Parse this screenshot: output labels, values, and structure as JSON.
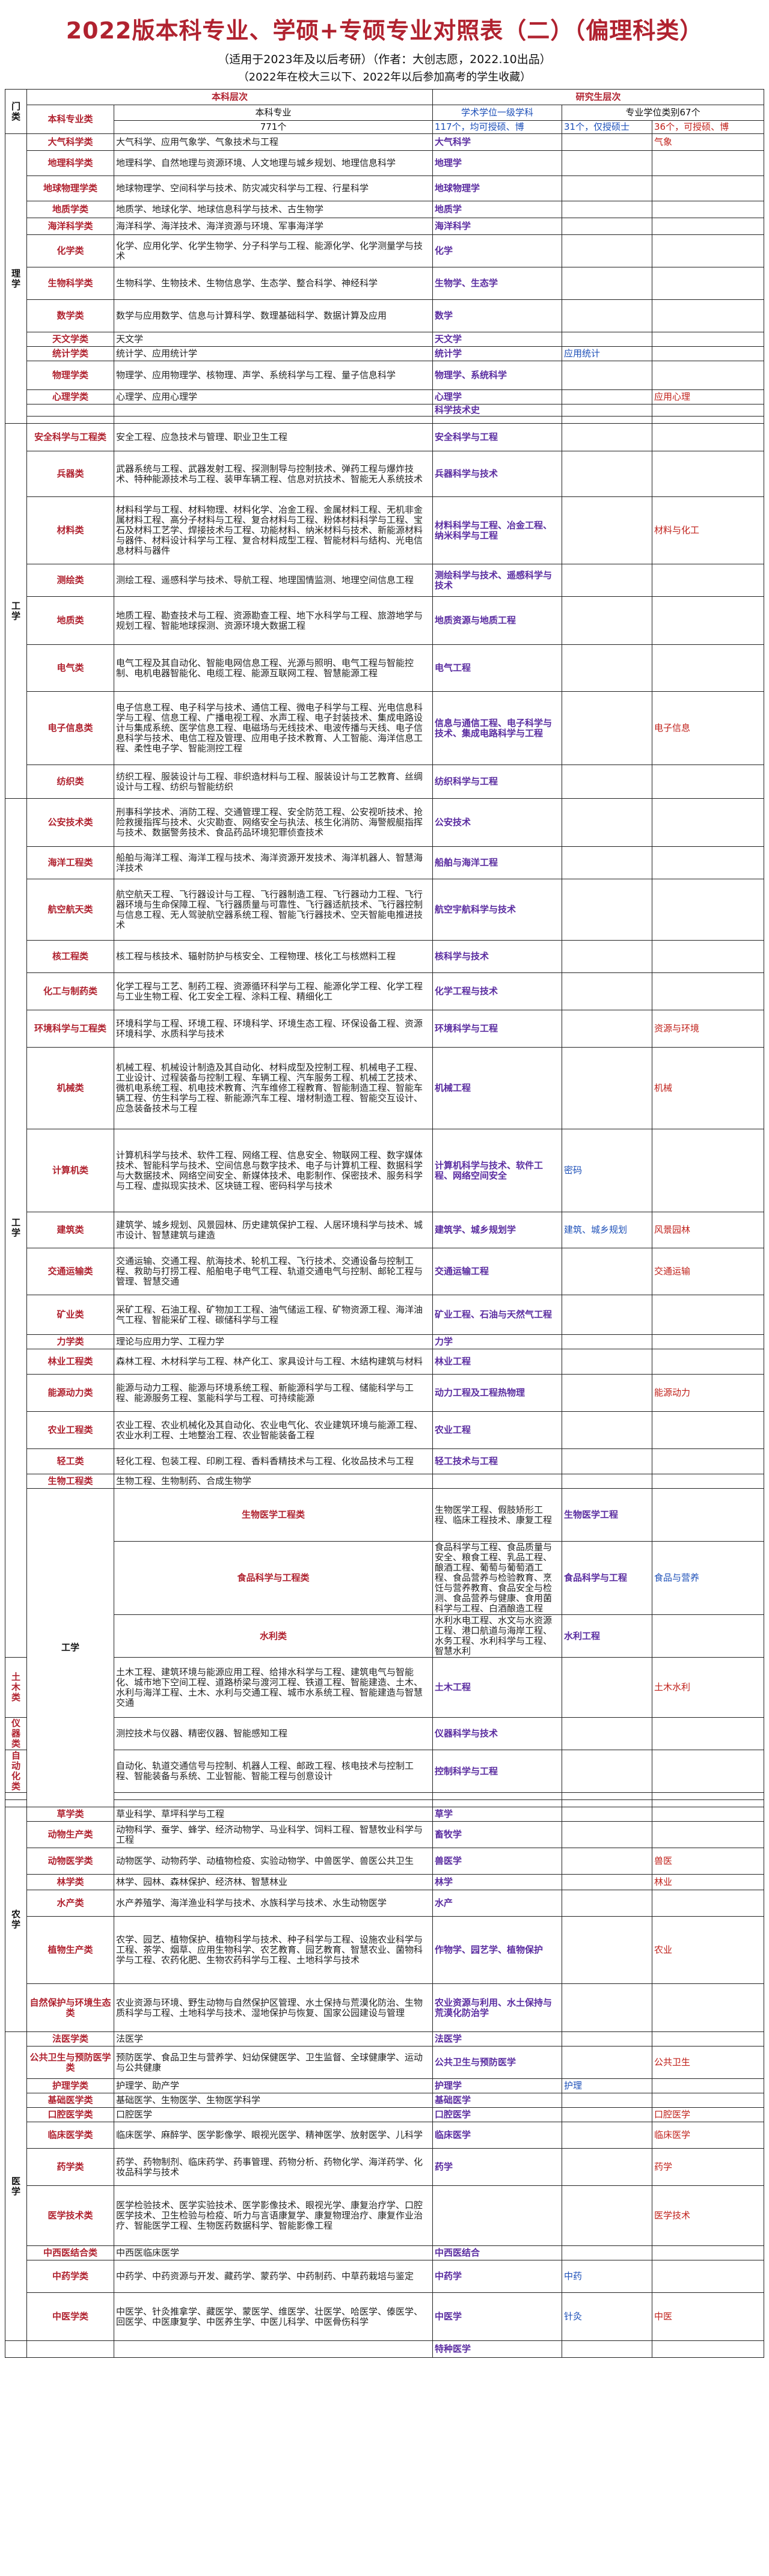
{
  "title": "2022版本科专业、学硕+专硕专业对照表（二）（偏理科类）",
  "subtitle": "（适用于2023年及以后考研）（作者：大创志愿，2022.10出品）",
  "note": "（2022年在校大三以下、2022年以后参加高考的学生收藏）",
  "header": {
    "menlei": "门类",
    "undergrad_level": "本科层次",
    "grad_level": "研究生层次",
    "category": "本科专业类",
    "major": "本科专业",
    "major_count": "771个",
    "academic": "学术学位一级学科",
    "academic_count": "117个，均可授硕、博",
    "professional": "专业学位类别67个",
    "master_count": "31个，仅授硕士",
    "doctor_count": "36个，可授硕、博"
  },
  "rows": [
    {
      "men": "理学",
      "span": 14,
      "cat": "大气科学类",
      "major": "大气科学、应用气象学、气象技术与工程",
      "acad": "大气科学",
      "mas": "",
      "prof": "气象",
      "h": 28
    },
    {
      "cat": "地理科学类",
      "major": "地理科学、自然地理与资源环境、人文地理与城乡规划、地理信息科学",
      "acad": "地理学",
      "mas": "",
      "prof": "",
      "h": 42
    },
    {
      "cat": "地球物理学类",
      "major": "地球物理学、空间科学与技术、防灾减灾科学与工程、行星科学",
      "acad": "地球物理学",
      "mas": "",
      "prof": "",
      "h": 42
    },
    {
      "cat": "地质学类",
      "major": "地质学、地球化学、地球信息科学与技术、古生物学",
      "acad": "地质学",
      "mas": "",
      "prof": "",
      "h": 28
    },
    {
      "cat": "海洋科学类",
      "major": "海洋科学、海洋技术、海洋资源与环境、军事海洋学",
      "acad": "海洋科学",
      "mas": "",
      "prof": "",
      "h": 28
    },
    {
      "cat": "化学类",
      "major": "化学、应用化学、化学生物学、分子科学与工程、能源化学、化学测量学与技术",
      "acad": "化学",
      "mas": "",
      "prof": "",
      "h": 54
    },
    {
      "cat": "生物科学类",
      "major": "生物科学、生物技术、生物信息学、生态学、整合科学、神经科学",
      "acad": "生物学、生态学",
      "mas": "",
      "prof": "",
      "h": 54
    },
    {
      "cat": "数学类",
      "major": "数学与应用数学、信息与计算科学、数理基础科学、数据计算及应用",
      "acad": "数学",
      "mas": "",
      "prof": "",
      "h": 54
    },
    {
      "cat": "天文学类",
      "major": "天文学",
      "acad": "天文学",
      "mas": "",
      "prof": "",
      "h": 24
    },
    {
      "cat": "统计学类",
      "major": "统计学、应用统计学",
      "acad": "统计学",
      "mas": "应用统计",
      "prof": "",
      "h": 24
    },
    {
      "cat": "物理学类",
      "major": "物理学、应用物理学、核物理、声学、系统科学与工程、量子信息科学",
      "acad": "物理学、系统科学",
      "mas": "",
      "prof": "",
      "h": 48
    },
    {
      "cat": "心理学类",
      "major": "心理学、应用心理学",
      "acad": "心理学",
      "mas": "",
      "prof": "应用心理",
      "h": 24
    },
    {
      "cat": "",
      "major": "",
      "acad": "科学技术史",
      "mas": "",
      "prof": "",
      "h": 20
    },
    {
      "cat": "",
      "major": "",
      "acad": "",
      "mas": "",
      "prof": "",
      "h": 12
    },
    {
      "men": "工学",
      "span": 8,
      "cat": "安全科学与工程类",
      "major": "安全工程、应急技术与管理、职业卫生工程",
      "acad": "安全科学与工程",
      "mas": "",
      "prof": "",
      "h": 46
    },
    {
      "cat": "兵器类",
      "major": "武器系统与工程、武器发射工程、探测制导与控制技术、弹药工程与爆炸技术、特种能源技术与工程、装甲车辆工程、信息对抗技术、智能无人系统技术",
      "acad": "兵器科学与技术",
      "mas": "",
      "prof": "",
      "h": 76
    },
    {
      "cat": "材料类",
      "major": "材料科学与工程、材料物理、材料化学、冶金工程、金属材料工程、无机非金属材料工程、高分子材料与工程、复合材料与工程、粉体材料科学与工程、宝石及材料工艺学、焊接技术与工程、功能材料、纳米材料与技术、新能源材料与器件、材料设计科学与工程、复合材料成型工程、智能材料与结构、光电信息材料与器件",
      "acad": "材料科学与工程、冶金工程、纳米科学与工程",
      "mas": "",
      "prof": "材料与化工",
      "h": 112
    },
    {
      "cat": "测绘类",
      "major": "测绘工程、遥感科学与技术、导航工程、地理国情监测、地理空间信息工程",
      "acad": "测绘科学与技术、遥感科学与技术",
      "mas": "",
      "prof": "",
      "h": 54
    },
    {
      "cat": "地质类",
      "major": "地质工程、勘查技术与工程、资源勘查工程、地下水科学与工程、旅游地学与规划工程、智能地球探测、资源环境大数据工程",
      "acad": "地质资源与地质工程",
      "mas": "",
      "prof": "",
      "h": 80
    },
    {
      "cat": "电气类",
      "major": "电气工程及其自动化、智能电网信息工程、光源与照明、电气工程与智能控制、电机电器智能化、电缆工程、能源互联网工程、智慧能源工程",
      "acad": "电气工程",
      "mas": "",
      "prof": "",
      "h": 78
    },
    {
      "cat": "电子信息类",
      "major": "电子信息工程、电子科学与技术、通信工程、微电子科学与工程、光电信息科学与工程、信息工程、广播电视工程、水声工程、电子封装技术、集成电路设计与集成系统、医学信息工程、电磁场与无线技术、电波传播与天线、电子信息科学与技术、电信工程及管理、应用电子技术教育、人工智能、海洋信息工程、柔性电子学、智能测控工程",
      "acad": "信息与通信工程、电子科学与技术、集成电路科学与工程",
      "mas": "",
      "prof": "电子信息",
      "h": 122
    },
    {
      "cat": "纺织类",
      "major": "纺织工程、服装设计与工程、非织造材料与工程、服装设计与工艺教育、丝绸设计与工程、纺织与智能纺织",
      "acad": "纺织科学与工程",
      "mas": "",
      "prof": "",
      "h": 56
    },
    {
      "men": "工学",
      "span": 20,
      "cat": "公安技术类",
      "major": "刑事科学技术、消防工程、交通管理工程、安全防范工程、公安视听技术、抢险救援指挥与技术、火灾勘查、网络安全与执法、核生化消防、海警舰艇指挥与技术、数据警务技术、食品药品环境犯罪侦查技术",
      "acad": "公安技术",
      "mas": "",
      "prof": "",
      "h": 80
    },
    {
      "cat": "海洋工程类",
      "major": "船舶与海洋工程、海洋工程与技术、海洋资源开发技术、海洋机器人、智慧海洋技术",
      "acad": "船舶与海洋工程",
      "mas": "",
      "prof": "",
      "h": 54
    },
    {
      "cat": "航空航天类",
      "major": "航空航天工程、飞行器设计与工程、飞行器制造工程、飞行器动力工程、飞行器环境与生命保障工程、飞行器质量与可靠性、飞行器适航技术、飞行器控制与信息工程、无人驾驶航空器系统工程、智能飞行器技术、空天智能电推进技术",
      "acad": "航空宇航科学与技术",
      "mas": "",
      "prof": "",
      "h": 102
    },
    {
      "cat": "核工程类",
      "major": "核工程与核技术、辐射防护与核安全、工程物理、核化工与核燃料工程",
      "acad": "核科学与技术",
      "mas": "",
      "prof": "",
      "h": 54
    },
    {
      "cat": "化工与制药类",
      "major": "化学工程与工艺、制药工程、资源循环科学与工程、能源化学工程、化学工程与工业生物工程、化工安全工程、涂料工程、精细化工",
      "acad": "化学工程与技术",
      "mas": "",
      "prof": "",
      "h": 62
    },
    {
      "cat": "环境科学与工程类",
      "major": "环境科学与工程、环境工程、环境科学、环境生态工程、环保设备工程、资源环境科学、水质科学与技术",
      "acad": "环境科学与工程",
      "mas": "",
      "prof": "资源与环境",
      "h": 62
    },
    {
      "cat": "机械类",
      "major": "机械工程、机械设计制造及其自动化、材料成型及控制工程、机械电子工程、工业设计、过程装备与控制工程、车辆工程、汽车服务工程、机械工艺技术、微机电系统工程、机电技术教育、汽车维修工程教育、智能制造工程、智能车辆工程、仿生科学与工程、新能源汽车工程、增材制造工程、智能交互设计、应急装备技术与工程",
      "acad": "机械工程",
      "mas": "",
      "prof": "机械",
      "h": 136
    },
    {
      "cat": "计算机类",
      "major": "计算机科学与技术、软件工程、网络工程、信息安全、物联网工程、数字媒体技术、智能科学与技术、空间信息与数字技术、电子与计算机工程、数据科学与大数据技术、网络空间安全、新媒体技术、电影制作、保密技术、服务科学与工程、虚拟现实技术、区块链工程、密码科学与技术",
      "acad": "计算机科学与技术、软件工程、网络空间安全",
      "mas": "密码",
      "prof": "",
      "h": 138
    },
    {
      "cat": "建筑类",
      "major": "建筑学、城乡规划、风景园林、历史建筑保护工程、人居环境科学与技术、城市设计、智慧建筑与建造",
      "acad": "建筑学、城乡规划学",
      "mas": "建筑、城乡规划",
      "prof": "风景园林",
      "h": 60
    },
    {
      "cat": "交通运输类",
      "major": "交通运输、交通工程、航海技术、轮机工程、飞行技术、交通设备与控制工程、救助与打捞工程、船舶电子电气工程、轨道交通电气与控制、邮轮工程与管理、智慧交通",
      "acad": "交通运输工程",
      "mas": "",
      "prof": "交通运输",
      "h": 78
    },
    {
      "cat": "矿业类",
      "major": "采矿工程、石油工程、矿物加工工程、油气储运工程、矿物资源工程、海洋油气工程、智能采矿工程、碳储科学与工程",
      "acad": "矿业工程、石油与天然气工程",
      "mas": "",
      "prof": "",
      "h": 66
    },
    {
      "cat": "力学类",
      "major": "理论与应用力学、工程力学",
      "acad": "力学",
      "mas": "",
      "prof": "",
      "h": 24
    },
    {
      "cat": "林业工程类",
      "major": "森林工程、木材科学与工程、林产化工、家具设计与工程、木结构建筑与材料",
      "acad": "林业工程",
      "mas": "",
      "prof": "",
      "h": 42
    },
    {
      "cat": "能源动力类",
      "major": "能源与动力工程、能源与环境系统工程、新能源科学与工程、储能科学与工程、能源服务工程、氢能科学与工程、可持续能源",
      "acad": "动力工程及工程热物理",
      "mas": "",
      "prof": "能源动力",
      "h": 62
    },
    {
      "cat": "农业工程类",
      "major": "农业工程、农业机械化及其自动化、农业电气化、农业建筑环境与能源工程、农业水利工程、土地整治工程、农业智能装备工程",
      "acad": "农业工程",
      "mas": "",
      "prof": "",
      "h": 62
    },
    {
      "cat": "轻工类",
      "major": "轻化工程、包装工程、印刷工程、香料香精技术与工程、化妆品技术与工程",
      "acad": "轻工技术与工程",
      "mas": "",
      "prof": "",
      "h": 42
    },
    {
      "cat": "生物工程类",
      "major": "生物工程、生物制药、合成生物学",
      "acad": "",
      "mas": "",
      "prof": "",
      "h": 24
    },
    {
      "men": "工学",
      "span": 8,
      "cat": "生物医学工程类",
      "major": "生物医学工程、假肢矫形工程、临床工程技术、康复工程",
      "acad": "生物医学工程",
      "mas": "",
      "prof": "生物与医药",
      "h": 44
    },
    {
      "cat": "食品科学与工程类",
      "major": "食品科学与工程、食品质量与安全、粮食工程、乳品工程、酿酒工程、葡萄与葡萄酒工程、食品营养与检验教育、烹饪与营养教育、食品安全与检测、食品营养与健康、食用菌科学与工程、白酒酿造工程",
      "acad": "食品科学与工程",
      "mas": "食品与营养",
      "prof": "",
      "h": 86
    },
    {
      "cat": "水利类",
      "major": "水利水电工程、水文与水资源工程、港口航道与海岸工程、水务工程、水利科学与工程、智慧水利",
      "acad": "水利工程",
      "mas": "",
      "prof": "",
      "h": 56
    },
    {
      "cat": "土木类",
      "major": "土木工程、建筑环境与能源应用工程、给排水科学与工程、建筑电气与智能化、城市地下空间工程、道路桥梁与渡河工程、铁道工程、智能建造、土木、水利与海洋工程、土木、水利与交通工程、城市水系统工程、智能建造与智慧交通",
      "acad": "土木工程",
      "mas": "",
      "prof": "土木水利",
      "h": 100
    },
    {
      "cat": "仪器类",
      "major": "测控技术与仪器、精密仪器、智能感知工程",
      "acad": "仪器科学与技术",
      "mas": "",
      "prof": "",
      "h": 24
    },
    {
      "cat": "自动化类",
      "major": "自动化、轨道交通信号与控制、机器人工程、邮政工程、核电技术与控制工程、智能装备与系统、工业智能、智能工程与创意设计",
      "acad": "控制科学与工程",
      "mas": "",
      "prof": "",
      "h": 62
    },
    {
      "cat": "",
      "major": "",
      "acad": "",
      "mas": "",
      "prof": "",
      "h": 12
    },
    {
      "cat": "",
      "major": "",
      "acad": "",
      "mas": "",
      "prof": "",
      "h": 12
    },
    {
      "men": "农学",
      "span": 7,
      "cat": "草学类",
      "major": "草业科学、草坪科学与工程",
      "acad": "草学",
      "mas": "",
      "prof": "",
      "h": 24
    },
    {
      "cat": "动物生产类",
      "major": "动物科学、蚕学、蜂学、经济动物学、马业科学、饲料工程、智慧牧业科学与工程",
      "acad": "畜牧学",
      "mas": "",
      "prof": "",
      "h": 44
    },
    {
      "cat": "动物医学类",
      "major": "动物医学、动物药学、动植物检疫、实验动物学、中兽医学、兽医公共卫生",
      "acad": "兽医学",
      "mas": "",
      "prof": "兽医",
      "h": 44
    },
    {
      "cat": "林学类",
      "major": "林学、园林、森林保护、经济林、智慧林业",
      "acad": "林学",
      "mas": "",
      "prof": "林业",
      "h": 26
    },
    {
      "cat": "水产类",
      "major": "水产养殖学、海洋渔业科学与技术、水族科学与技术、水生动物医学",
      "acad": "水产",
      "mas": "",
      "prof": "",
      "h": 44
    },
    {
      "cat": "植物生产类",
      "major": "农学、园艺、植物保护、植物科学与技术、种子科学与工程、设施农业科学与工程、茶学、烟草、应用生物科学、农艺教育、园艺教育、智慧农业、菌物科学与工程、农药化肥、生物农药科学与工程、土地科学与技术",
      "acad": "作物学、园艺学、植物保护",
      "mas": "",
      "prof": "农业",
      "h": 112
    },
    {
      "cat": "自然保护与环境生态类",
      "major": "农业资源与环境、野生动物与自然保护区管理、水土保持与荒漠化防治、生物质科学与工程、土地科学与技术、湿地保护与恢复、国家公园建设与管理",
      "acad": "农业资源与利用、水土保持与荒漠化防治学",
      "mas": "",
      "prof": "",
      "h": 80
    },
    {
      "men": "医学",
      "span": 11,
      "cat": "法医学类",
      "major": "法医学",
      "acad": "法医学",
      "mas": "",
      "prof": "",
      "h": 24
    },
    {
      "cat": "公共卫生与预防医学类",
      "major": "预防医学、食品卫生与营养学、妇幼保健医学、卫生监督、全球健康学、运动与公共健康",
      "acad": "公共卫生与预防医学",
      "mas": "",
      "prof": "公共卫生",
      "h": 54
    },
    {
      "cat": "护理学类",
      "major": "护理学、助产学",
      "acad": "护理学",
      "mas": "护理",
      "prof": "",
      "h": 24
    },
    {
      "cat": "基础医学类",
      "major": "基础医学、生物医学、生物医学科学",
      "acad": "基础医学",
      "mas": "",
      "prof": "",
      "h": 24
    },
    {
      "cat": "口腔医学类",
      "major": "口腔医学",
      "acad": "口腔医学",
      "mas": "",
      "prof": "口腔医学",
      "h": 24
    },
    {
      "cat": "临床医学类",
      "major": "临床医学、麻醉学、医学影像学、眼视光医学、精神医学、放射医学、儿科学",
      "acad": "临床医学",
      "mas": "",
      "prof": "临床医学",
      "h": 44
    },
    {
      "cat": "药学类",
      "major": "药学、药物制剂、临床药学、药事管理、药物分析、药物化学、海洋药学、化妆品科学与技术",
      "acad": "药学",
      "mas": "",
      "prof": "药学",
      "h": 62
    },
    {
      "cat": "医学技术类",
      "major": "医学检验技术、医学实验技术、医学影像技术、眼视光学、康复治疗学、口腔医学技术、卫生检验与检疫、听力与言语康复学、康复物理治疗、康复作业治疗、智能医学工程、生物医药数据科学、智能影像工程",
      "acad": "",
      "mas": "",
      "prof": "医学技术",
      "h": 100
    },
    {
      "cat": "中西医结合类",
      "major": "中西医临床医学",
      "acad": "中西医结合",
      "mas": "",
      "prof": "",
      "h": 24
    },
    {
      "cat": "中药学类",
      "major": "中药学、中药资源与开发、藏药学、蒙药学、中药制药、中草药栽培与鉴定",
      "acad": "中药学",
      "mas": "中药",
      "prof": "",
      "h": 54
    },
    {
      "cat": "中医学类",
      "major": "中医学、针灸推拿学、藏医学、蒙医学、维医学、壮医学、哈医学、傣医学、回医学、中医康复学、中医养生学、中医儿科学、中医骨伤科学",
      "acad": "中医学",
      "mas": "针灸",
      "prof": "中医",
      "h": 80
    },
    {
      "men": "",
      "span": 1,
      "cat": "",
      "major": "",
      "acad": "特种医学",
      "mas": "",
      "prof": "",
      "h": 28
    }
  ]
}
